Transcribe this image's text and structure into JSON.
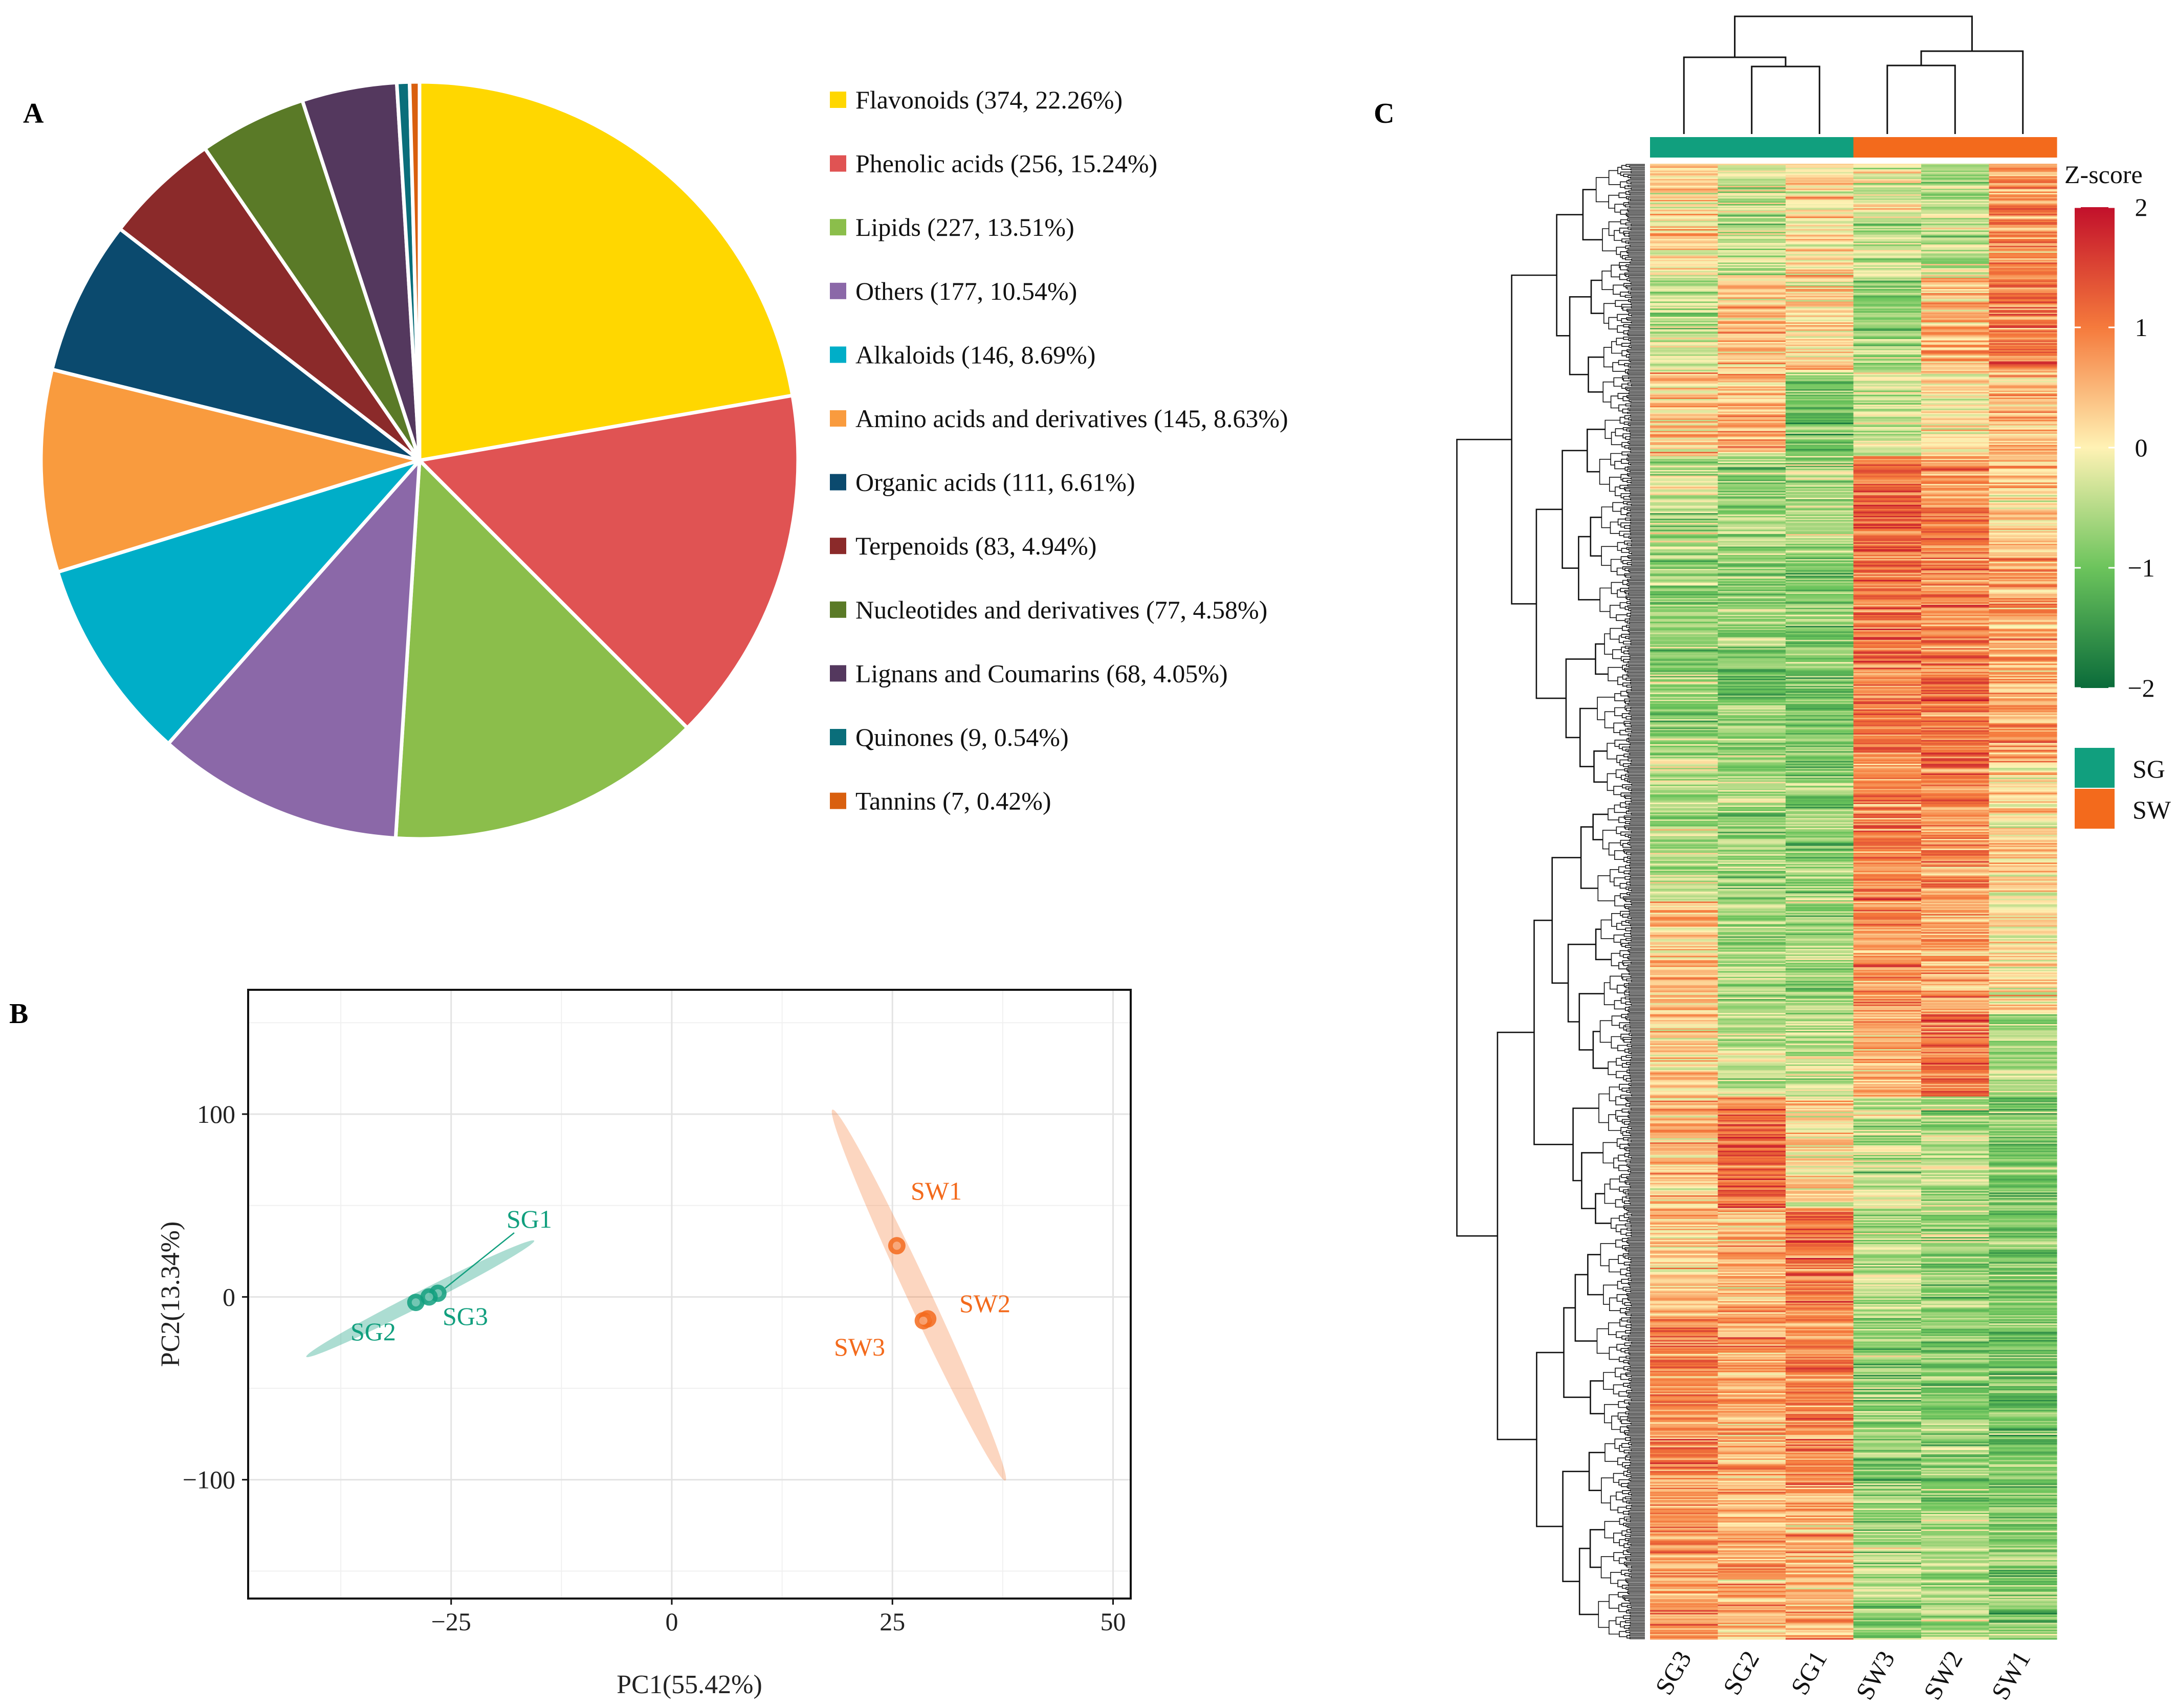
{
  "panels": {
    "a": "A",
    "b": "B",
    "c": "C"
  },
  "chart_data": [
    {
      "type": "pie",
      "panel": "A",
      "categories": [
        "Flavonoids",
        "Phenolic acids",
        "Lipids",
        "Others",
        "Alkaloids",
        "Amino acids and derivatives",
        "Organic acids",
        "Terpenoids",
        "Nucleotides and derivatives",
        "Lignans and Coumarins",
        "Quinones",
        "Tannins"
      ],
      "counts": [
        374,
        256,
        227,
        177,
        146,
        145,
        111,
        83,
        77,
        68,
        9,
        7
      ],
      "percents": [
        22.26,
        15.24,
        13.51,
        10.54,
        8.69,
        8.63,
        6.61,
        4.94,
        4.58,
        4.05,
        0.54,
        0.42
      ],
      "legend": [
        "Flavonoids (374, 22.26%)",
        "Phenolic acids (256, 15.24%)",
        "Lipids (227, 13.51%)",
        "Others (177, 10.54%)",
        "Alkaloids (146, 8.69%)",
        "Amino acids and derivatives (145, 8.63%)",
        "Organic acids (111, 6.61%)",
        "Terpenoids (83, 4.94%)",
        "Nucleotides and derivatives (77, 4.58%)",
        "Lignans and Coumarins (68, 4.05%)",
        "Quinones (9, 0.54%)",
        "Tannins (7, 0.42%)"
      ],
      "colors": [
        "#FFD700",
        "#E05353",
        "#8BBE4B",
        "#8B68A8",
        "#00AEC8",
        "#F99B3E",
        "#0B4A6E",
        "#8B2A2A",
        "#5A7A27",
        "#54385E",
        "#0A6E7A",
        "#D95F0E"
      ]
    },
    {
      "type": "scatter",
      "panel": "B",
      "xlabel": "PC1(55.42%)",
      "ylabel": "PC2(13.34%)",
      "xlim": [
        -48,
        52
      ],
      "ylim": [
        -165,
        168
      ],
      "xticks": [
        -25,
        0,
        25,
        50
      ],
      "xtick_labels": [
        "−25",
        "0",
        "25",
        "50"
      ],
      "yticks": [
        -100,
        0,
        100
      ],
      "ytick_labels": [
        "−100",
        "0",
        "100"
      ],
      "grid": true,
      "points": [
        {
          "label": "SG1",
          "x": -26.5,
          "y": 2,
          "group": "SG"
        },
        {
          "label": "SG2",
          "x": -29,
          "y": -3,
          "group": "SG"
        },
        {
          "label": "SG3",
          "x": -27.5,
          "y": 0,
          "group": "SG"
        },
        {
          "label": "SW1",
          "x": 25.5,
          "y": 28,
          "group": "SW"
        },
        {
          "label": "SW2",
          "x": 29,
          "y": -12,
          "group": "SW"
        },
        {
          "label": "SW3",
          "x": 28.5,
          "y": -13,
          "group": "SW"
        }
      ],
      "group_colors": {
        "SG": "#119F7E",
        "SW": "#F36A1C"
      }
    },
    {
      "type": "heatmap",
      "panel": "C",
      "columns": [
        "SG3",
        "SG2",
        "SG1",
        "SW3",
        "SW2",
        "SW1"
      ],
      "column_groups": [
        "SG",
        "SG",
        "SG",
        "SW",
        "SW",
        "SW"
      ],
      "color_scale_title": "Z-score",
      "color_scale_ticks": [
        2,
        1,
        0,
        -1,
        -2
      ],
      "color_scale_labels": [
        "2",
        "1",
        "0",
        "−1",
        "−2"
      ],
      "color_scale_colors": [
        "#C2102B",
        "#F57A3C",
        "#FFF2B4",
        "#6CC45C",
        "#0A6B3A"
      ],
      "group_legend": [
        {
          "label": "SG",
          "color": "#119F7E"
        },
        {
          "label": "SW",
          "color": "#F36A1C"
        }
      ],
      "row_blocks": [
        {
          "rows": 80,
          "means": [
            0.2,
            -0.4,
            0.1,
            -0.2,
            -0.5,
            0.8
          ]
        },
        {
          "rows": 70,
          "means": [
            -0.3,
            0.3,
            0.2,
            -0.6,
            0.4,
            0.9
          ]
        },
        {
          "rows": 60,
          "means": [
            0.3,
            0.4,
            -0.9,
            -0.3,
            0.1,
            0.4
          ]
        },
        {
          "rows": 70,
          "means": [
            -0.5,
            -0.6,
            -0.5,
            1.2,
            0.9,
            0.3
          ]
        },
        {
          "rows": 150,
          "means": [
            -0.7,
            -0.8,
            -0.9,
            1.0,
            1.0,
            0.7
          ]
        },
        {
          "rows": 100,
          "means": [
            -0.4,
            -0.7,
            -0.7,
            0.9,
            0.8,
            0.2
          ]
        },
        {
          "rows": 80,
          "means": [
            0.4,
            -0.6,
            -0.6,
            0.8,
            0.6,
            0.1
          ]
        },
        {
          "rows": 60,
          "means": [
            0.2,
            -0.3,
            -0.4,
            0.6,
            1.1,
            -0.6
          ]
        },
        {
          "rows": 80,
          "means": [
            0.4,
            1.2,
            0.2,
            -0.5,
            -0.6,
            -0.8
          ]
        },
        {
          "rows": 80,
          "means": [
            0.4,
            0.5,
            1.1,
            -0.5,
            -0.7,
            -0.9
          ]
        },
        {
          "rows": 120,
          "means": [
            0.9,
            0.6,
            1.0,
            -0.8,
            -0.8,
            -0.9
          ]
        },
        {
          "rows": 110,
          "means": [
            0.7,
            0.5,
            0.6,
            -0.6,
            -0.6,
            -0.8
          ]
        }
      ]
    }
  ]
}
